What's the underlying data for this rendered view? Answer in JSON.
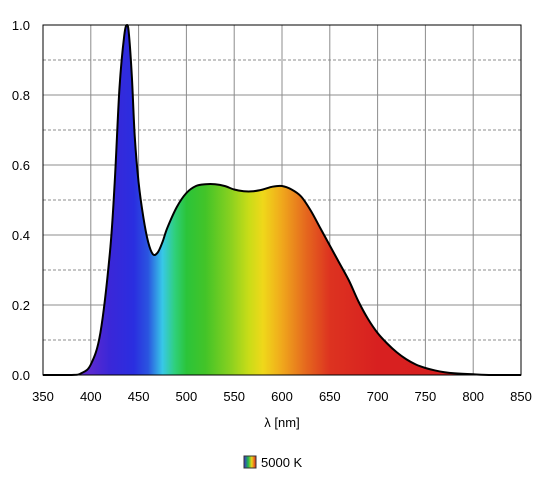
{
  "chart_data": {
    "type": "area",
    "title": "",
    "xlabel": "λ [nm]",
    "ylabel": "",
    "xlim": [
      350,
      850
    ],
    "ylim": [
      0,
      1.0
    ],
    "x_ticks": [
      "350",
      "400",
      "450",
      "500",
      "550",
      "600",
      "650",
      "700",
      "750",
      "800",
      "850"
    ],
    "y_ticks": [
      "0.0",
      "0.2",
      "0.4",
      "0.6",
      "0.8",
      "1.0"
    ],
    "grid": true,
    "legend": {
      "position": "bottom-center",
      "entries": [
        "5000 K"
      ]
    },
    "series": [
      {
        "name": "5000 K",
        "x": [
          350,
          380,
          390,
          400,
          410,
          420,
          425,
          430,
          435,
          438,
          440,
          443,
          446,
          450,
          455,
          460,
          465,
          470,
          475,
          480,
          490,
          500,
          510,
          520,
          530,
          540,
          550,
          560,
          570,
          580,
          590,
          600,
          610,
          620,
          630,
          640,
          650,
          660,
          670,
          680,
          690,
          700,
          710,
          720,
          730,
          740,
          750,
          760,
          770,
          780,
          800,
          820,
          850
        ],
        "y": [
          0.0,
          0.0,
          0.005,
          0.03,
          0.12,
          0.35,
          0.55,
          0.82,
          0.97,
          1.0,
          0.97,
          0.85,
          0.68,
          0.55,
          0.45,
          0.38,
          0.345,
          0.35,
          0.38,
          0.42,
          0.48,
          0.52,
          0.54,
          0.545,
          0.545,
          0.54,
          0.53,
          0.525,
          0.525,
          0.53,
          0.538,
          0.54,
          0.53,
          0.51,
          0.47,
          0.42,
          0.37,
          0.32,
          0.27,
          0.21,
          0.16,
          0.12,
          0.09,
          0.065,
          0.045,
          0.03,
          0.02,
          0.013,
          0.008,
          0.005,
          0.002,
          0.0,
          0.0
        ]
      }
    ]
  }
}
